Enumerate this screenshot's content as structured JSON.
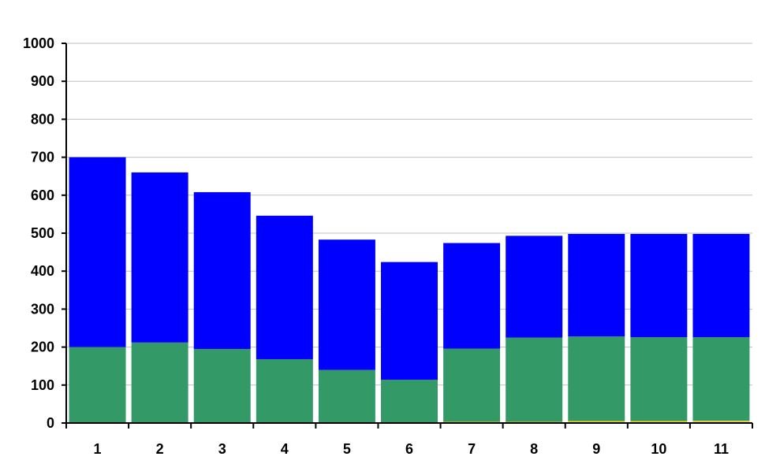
{
  "chart_data": {
    "type": "bar",
    "stacked": true,
    "title": "",
    "xlabel": "",
    "ylabel": "",
    "ylim": [
      0,
      1000
    ],
    "y_ticks": [
      0,
      100,
      200,
      300,
      400,
      500,
      600,
      700,
      800,
      900,
      1000
    ],
    "grid": true,
    "legend": "none",
    "categories": [
      "1",
      "2",
      "3",
      "4",
      "5",
      "6",
      "7",
      "8",
      "9",
      "10",
      "11"
    ],
    "series": [
      {
        "color": "#b0b0e8",
        "values": [
          0,
          0,
          0,
          0,
          0,
          0,
          0,
          0,
          2,
          2,
          3
        ]
      },
      {
        "color": "#ffd700",
        "values": [
          0,
          0,
          0,
          0,
          2,
          2,
          3,
          3,
          3,
          3,
          3
        ]
      },
      {
        "color": "#339966",
        "values": [
          200,
          212,
          195,
          168,
          138,
          112,
          193,
          222,
          223,
          221,
          220
        ]
      },
      {
        "color": "#0000ff",
        "values": [
          500,
          448,
          413,
          378,
          343,
          310,
          278,
          268,
          270,
          272,
          272
        ]
      }
    ]
  }
}
